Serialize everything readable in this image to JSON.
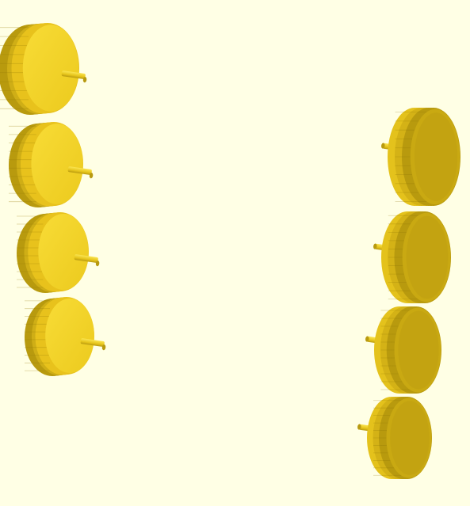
{
  "viewport": {
    "name": "3d-render-viewport",
    "background_color": "#ffffe5"
  },
  "colors": {
    "wheel_face": "#f4d020",
    "wheel_face_light": "#f8dc3c",
    "wheel_rim_light": "#e8c21c",
    "wheel_rim_dark": "#b89a0e",
    "axle": "#f2d22c",
    "axle_dark": "#b89a10"
  },
  "scene": {
    "left_wheel_count": 4,
    "right_wheel_count": 4,
    "description_icon": "wheel-with-axle-icon"
  }
}
